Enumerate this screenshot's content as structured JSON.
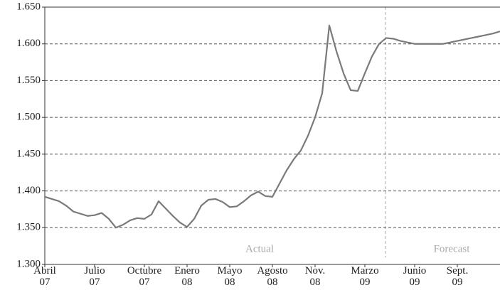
{
  "chart_data": {
    "type": "line",
    "categories": [
      "Abril 07",
      null,
      null,
      null,
      null,
      null,
      null,
      "Julio 07",
      null,
      null,
      null,
      null,
      null,
      null,
      "Octubre 07",
      null,
      null,
      null,
      null,
      null,
      "Enero 08",
      null,
      null,
      null,
      null,
      null,
      "Mayo 08",
      null,
      null,
      null,
      null,
      null,
      "Agosto 08",
      null,
      null,
      null,
      null,
      null,
      "Nov. 08",
      null,
      null,
      null,
      null,
      null,
      null,
      "Marzo 09",
      null,
      null,
      null,
      null,
      null,
      null,
      "Junio 09",
      null,
      null,
      null,
      null,
      null,
      "Sept. 09",
      null,
      null,
      null,
      null,
      null,
      null
    ],
    "values": [
      1392,
      1389,
      1386,
      1380,
      1372,
      1369,
      1366,
      1367,
      1370,
      1362,
      1350,
      1354,
      1360,
      1363,
      1362,
      1368,
      1386,
      1376,
      1366,
      1357,
      1351,
      1362,
      1380,
      1388,
      1389,
      1385,
      1378,
      1379,
      1386,
      1394,
      1399,
      1393,
      1392,
      1410,
      1428,
      1443,
      1455,
      1475,
      1500,
      1533,
      1625,
      1590,
      1560,
      1537,
      1536,
      1560,
      1583,
      1600,
      1608,
      1607,
      1604,
      1602,
      1600,
      1600,
      1600,
      1600,
      1600,
      1602,
      1604,
      1606,
      1608,
      1610,
      1612,
      1614,
      1617
    ],
    "color": "#7a7a7a",
    "ylim": [
      1300,
      1650
    ],
    "yticks": [
      {
        "value": 1300,
        "label": "1.300"
      },
      {
        "value": 1350,
        "label": "1.350"
      },
      {
        "value": 1400,
        "label": "1.400"
      },
      {
        "value": 1450,
        "label": "1.450"
      },
      {
        "value": 1500,
        "label": "1.500"
      },
      {
        "value": 1550,
        "label": "1.550"
      },
      {
        "value": 1600,
        "label": "1.600"
      },
      {
        "value": 1650,
        "label": "1.650"
      }
    ],
    "grid": true,
    "annotations": [
      "Actual",
      "Forecast"
    ]
  }
}
